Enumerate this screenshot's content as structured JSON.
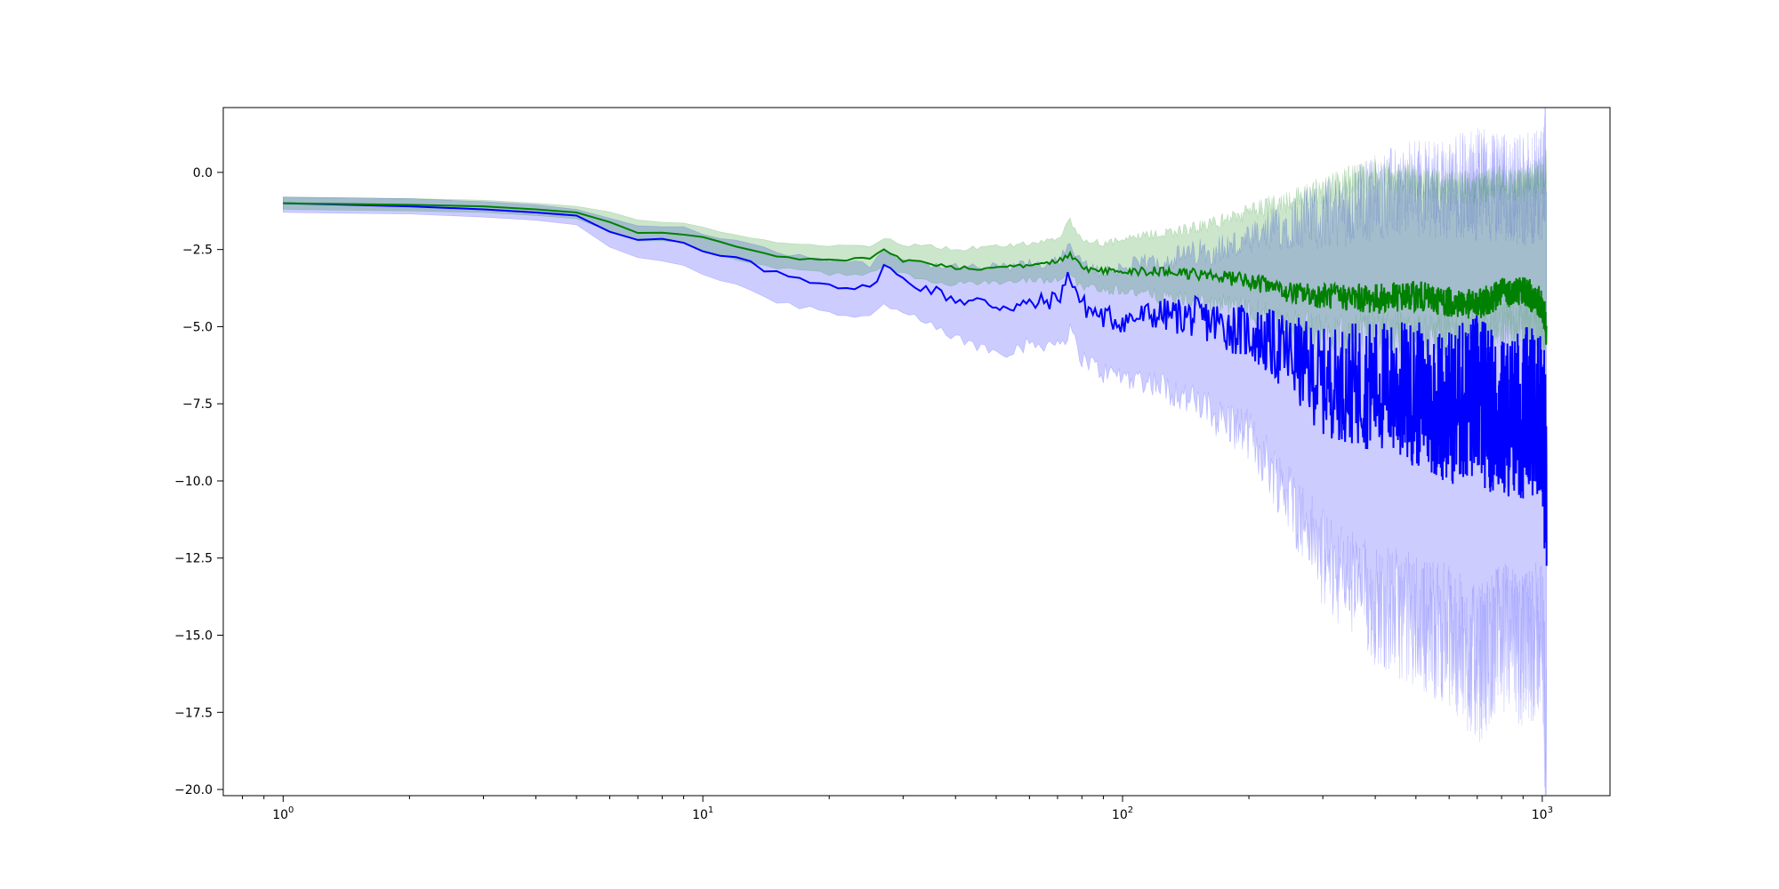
{
  "chart_data": {
    "type": "line",
    "x_scale": "log",
    "xlim": [
      0.72,
      1450
    ],
    "ylim": [
      -20.2,
      2.1
    ],
    "x_ticks": [
      {
        "value": 1,
        "base": "10",
        "exp": "0"
      },
      {
        "value": 10,
        "base": "10",
        "exp": "1"
      },
      {
        "value": 100,
        "base": "10",
        "exp": "2"
      },
      {
        "value": 1000,
        "base": "10",
        "exp": "3"
      }
    ],
    "y_ticks": [
      0.0,
      -2.5,
      -5.0,
      -7.5,
      -10.0,
      -12.5,
      -15.0,
      -17.5,
      -20.0
    ],
    "y_tick_labels": [
      "0.0",
      "−2.5",
      "−5.0",
      "−7.5",
      "−10.0",
      "−12.5",
      "−15.0",
      "−17.5",
      "−20.0"
    ],
    "grid": false,
    "legend": "none",
    "series": [
      {
        "color": "#0000ff",
        "band_color": "#0000ff",
        "band_opacity": 0.2,
        "x": [
          1,
          2,
          3,
          4,
          5,
          6,
          7,
          8,
          9,
          10,
          12,
          15,
          20,
          25,
          27,
          30,
          35,
          40,
          50,
          60,
          70,
          75,
          80,
          90,
          100,
          120,
          150,
          200,
          250,
          300,
          400,
          500,
          600,
          700,
          800,
          900,
          1000,
          1024
        ],
        "mean": [
          -1.0,
          -1.1,
          -1.2,
          -1.3,
          -1.4,
          -1.95,
          -2.2,
          -2.2,
          -2.3,
          -2.6,
          -2.8,
          -3.3,
          -3.6,
          -3.8,
          -3.0,
          -3.5,
          -3.8,
          -4.1,
          -4.3,
          -4.3,
          -4.1,
          -3.3,
          -4.3,
          -4.7,
          -4.8,
          -4.6,
          -4.7,
          -5.2,
          -5.9,
          -6.8,
          -6.9,
          -7.2,
          -7.6,
          -7.3,
          -8.0,
          -7.8,
          -7.6,
          -10.4
        ],
        "lower": [
          -1.3,
          -1.35,
          -1.45,
          -1.55,
          -1.7,
          -2.4,
          -2.8,
          -2.9,
          -3.0,
          -3.3,
          -3.6,
          -4.2,
          -4.5,
          -4.7,
          -4.2,
          -4.6,
          -5.0,
          -5.4,
          -5.8,
          -5.6,
          -5.5,
          -5.2,
          -6.0,
          -6.5,
          -6.6,
          -6.8,
          -7.5,
          -8.5,
          -10.5,
          -12.5,
          -14.0,
          -14.5,
          -15.0,
          -16.0,
          -15.0,
          -15.5,
          -15.0,
          -19.2
        ],
        "upper": [
          -0.8,
          -0.85,
          -0.95,
          -1.05,
          -1.2,
          -1.5,
          -1.7,
          -1.75,
          -1.8,
          -2.0,
          -2.2,
          -2.6,
          -2.8,
          -3.0,
          -2.5,
          -2.8,
          -3.0,
          -3.1,
          -3.1,
          -3.0,
          -2.9,
          -2.4,
          -3.0,
          -3.2,
          -3.1,
          -2.9,
          -2.6,
          -2.3,
          -1.6,
          -1.4,
          -0.8,
          -0.5,
          -0.5,
          -0.4,
          -0.5,
          -0.6,
          -0.4,
          1.1
        ]
      },
      {
        "color": "#008000",
        "band_color": "#008000",
        "band_opacity": 0.2,
        "x": [
          1,
          2,
          3,
          4,
          5,
          6,
          7,
          8,
          9,
          10,
          12,
          15,
          20,
          25,
          27,
          30,
          35,
          40,
          50,
          60,
          70,
          75,
          80,
          90,
          100,
          120,
          150,
          200,
          250,
          300,
          400,
          500,
          600,
          700,
          800,
          900,
          1000,
          1024
        ],
        "mean": [
          -1.0,
          -1.05,
          -1.1,
          -1.2,
          -1.3,
          -1.6,
          -1.95,
          -1.95,
          -2.0,
          -2.1,
          -2.4,
          -2.75,
          -2.85,
          -2.8,
          -2.5,
          -2.85,
          -2.95,
          -3.1,
          -3.1,
          -3.0,
          -2.9,
          -2.7,
          -3.1,
          -3.2,
          -3.2,
          -3.2,
          -3.3,
          -3.5,
          -3.9,
          -4.0,
          -4.1,
          -4.0,
          -4.2,
          -4.3,
          -3.9,
          -3.8,
          -4.3,
          -5.1
        ],
        "lower": [
          -1.2,
          -1.25,
          -1.3,
          -1.4,
          -1.5,
          -1.9,
          -2.2,
          -2.25,
          -2.3,
          -2.5,
          -2.8,
          -3.1,
          -3.3,
          -3.3,
          -3.0,
          -3.3,
          -3.5,
          -3.6,
          -3.6,
          -3.5,
          -3.5,
          -3.3,
          -3.7,
          -3.8,
          -3.8,
          -4.0,
          -4.2,
          -4.4,
          -5.0,
          -5.2,
          -5.2,
          -5.3,
          -5.3,
          -5.2,
          -5.0,
          -5.0,
          -5.2,
          -5.6
        ],
        "upper": [
          -0.8,
          -0.85,
          -0.9,
          -1.0,
          -1.1,
          -1.3,
          -1.55,
          -1.6,
          -1.65,
          -1.8,
          -2.0,
          -2.3,
          -2.4,
          -2.4,
          -2.1,
          -2.35,
          -2.4,
          -2.5,
          -2.4,
          -2.3,
          -2.2,
          -1.6,
          -2.2,
          -2.3,
          -2.2,
          -2.0,
          -1.8,
          -1.3,
          -0.9,
          -0.6,
          0.0,
          -0.3,
          -0.5,
          -0.5,
          -0.3,
          -0.4,
          -0.1,
          0.2
        ]
      }
    ]
  }
}
